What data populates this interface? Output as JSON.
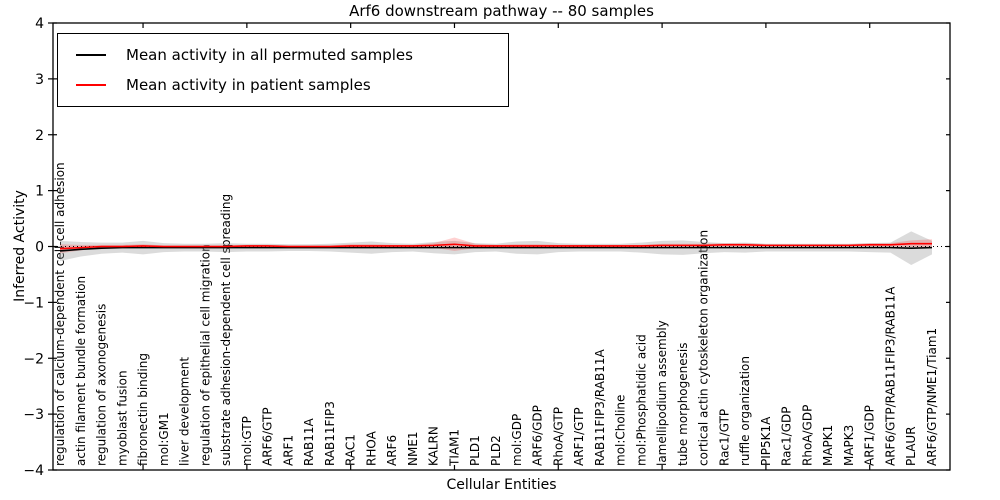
{
  "chart_data": {
    "type": "line",
    "title": "Arf6 downstream pathway -- 80 samples",
    "xlabel": "Cellular Entities",
    "ylabel": "Inferred Activity",
    "ylim": [
      -4,
      4
    ],
    "yticks": [
      -4,
      -3,
      -2,
      -1,
      0,
      1,
      2,
      3,
      4
    ],
    "grid": false,
    "legend_position": "upper left",
    "zero_line": {
      "y": 0,
      "style": "dotted",
      "color": "#000000"
    },
    "categories": [
      "regulation of calcium-dependent cell-cell adhesion",
      "actin filament bundle formation",
      "regulation of axonogenesis",
      "myoblast fusion",
      "fibronectin binding",
      "mol:GM1",
      "liver development",
      "regulation of epithelial cell migration",
      "substrate adhesion-dependent cell spreading",
      "mol:GTP",
      "ARF6/GTP",
      "ARF1",
      "RAB11A",
      "RAB11FIP3",
      "RAC1",
      "RHOA",
      "ARF6",
      "NME1",
      "KALRN",
      "TIAM1",
      "PLD1",
      "PLD2",
      "mol:GDP",
      "ARF6/GDP",
      "RhoA/GTP",
      "ARF1/GTP",
      "RAB11FIP3/RAB11A",
      "mol:Choline",
      "mol:Phosphatidic acid",
      "lamellipodium assembly",
      "tube morphogenesis",
      "cortical actin cytoskeleton organization",
      "Rac1/GTP",
      "ruffle organization",
      "PIP5K1A",
      "Rac1/GDP",
      "RhoA/GDP",
      "MAPK1",
      "MAPK3",
      "ARF1/GDP",
      "ARF6/GTP/RAB11FIP3/RAB11A",
      "PLAUR",
      "ARF6/GTP/NME1/Tiam1"
    ],
    "series": [
      {
        "name": "Mean activity in all permuted samples",
        "color": "#000000",
        "band_color": "#999999",
        "band_opacity": 0.35,
        "values": [
          -0.08,
          -0.05,
          -0.03,
          -0.02,
          -0.02,
          -0.02,
          -0.02,
          -0.02,
          -0.02,
          -0.02,
          -0.02,
          -0.02,
          -0.02,
          -0.02,
          -0.02,
          -0.02,
          -0.02,
          -0.02,
          -0.02,
          -0.02,
          -0.02,
          -0.02,
          -0.02,
          -0.02,
          -0.02,
          -0.02,
          -0.02,
          -0.02,
          -0.02,
          -0.02,
          -0.02,
          -0.02,
          -0.02,
          -0.02,
          -0.02,
          -0.02,
          -0.02,
          -0.02,
          -0.02,
          -0.02,
          -0.02,
          -0.03,
          -0.02
        ],
        "band_halfwidth": [
          0.18,
          0.13,
          0.1,
          0.09,
          0.12,
          0.08,
          0.07,
          0.07,
          0.08,
          0.07,
          0.07,
          0.06,
          0.06,
          0.07,
          0.09,
          0.11,
          0.08,
          0.07,
          0.1,
          0.12,
          0.08,
          0.07,
          0.11,
          0.12,
          0.08,
          0.07,
          0.07,
          0.07,
          0.09,
          0.12,
          0.13,
          0.1,
          0.08,
          0.09,
          0.07,
          0.07,
          0.07,
          0.07,
          0.07,
          0.08,
          0.09,
          0.3,
          0.12
        ]
      },
      {
        "name": "Mean activity in patient samples",
        "color": "#ff0000",
        "band_color": "#ff0000",
        "band_opacity": 0.18,
        "values": [
          -0.04,
          -0.02,
          0.0,
          0.0,
          0.01,
          0.0,
          0.0,
          0.0,
          0.0,
          0.01,
          0.01,
          0.0,
          0.0,
          0.0,
          0.01,
          0.01,
          0.01,
          0.01,
          0.02,
          0.04,
          0.01,
          0.01,
          0.01,
          0.01,
          0.01,
          0.01,
          0.01,
          0.01,
          0.01,
          0.02,
          0.02,
          0.02,
          0.03,
          0.03,
          0.02,
          0.02,
          0.02,
          0.02,
          0.02,
          0.03,
          0.03,
          0.05,
          0.05
        ],
        "band_halfwidth": [
          0.08,
          0.05,
          0.03,
          0.03,
          0.03,
          0.02,
          0.02,
          0.02,
          0.02,
          0.02,
          0.02,
          0.02,
          0.02,
          0.02,
          0.03,
          0.03,
          0.02,
          0.02,
          0.04,
          0.12,
          0.04,
          0.02,
          0.03,
          0.03,
          0.02,
          0.02,
          0.02,
          0.02,
          0.02,
          0.03,
          0.03,
          0.03,
          0.03,
          0.03,
          0.02,
          0.02,
          0.02,
          0.02,
          0.02,
          0.03,
          0.03,
          0.06,
          0.08
        ]
      }
    ]
  }
}
